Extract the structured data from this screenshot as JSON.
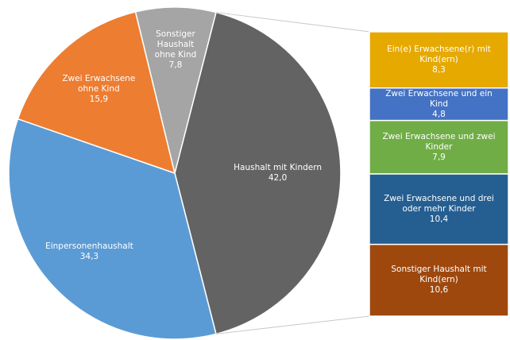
{
  "chart_data": {
    "type": "pie_of_bar",
    "categories": [
      "Haushalt mit Kindern",
      "Einpersonenhaushalt",
      "Zwei Erwachsene ohne Kind",
      "Sonstiger Haushalt ohne Kind"
    ],
    "values": [
      42.0,
      34.3,
      15.9,
      7.8
    ],
    "value_labels": [
      "42,0",
      "34,3",
      "15,9",
      "7,8"
    ],
    "colors": [
      "#636363",
      "#5b9bd5",
      "#ed7d31",
      "#a5a5a5"
    ],
    "breakdown": {
      "categories": [
        "Ein(e) Erwachsene(r) mit Kind(ern)",
        "Zwei Erwachsene und ein Kind",
        "Zwei Erwachsene und zwei Kinder",
        "Zwei Erwachsene und drei oder mehr Kinder",
        "Sonstiger Haushalt mit Kind(ern)"
      ],
      "values": [
        8.3,
        4.8,
        7.9,
        10.4,
        10.6
      ],
      "value_labels": [
        "8,3",
        "4,8",
        "7,9",
        "10,4",
        "10,6"
      ],
      "colors": [
        "#e5a900",
        "#4472c4",
        "#70ad47",
        "#255e91",
        "#9e480e"
      ]
    }
  }
}
